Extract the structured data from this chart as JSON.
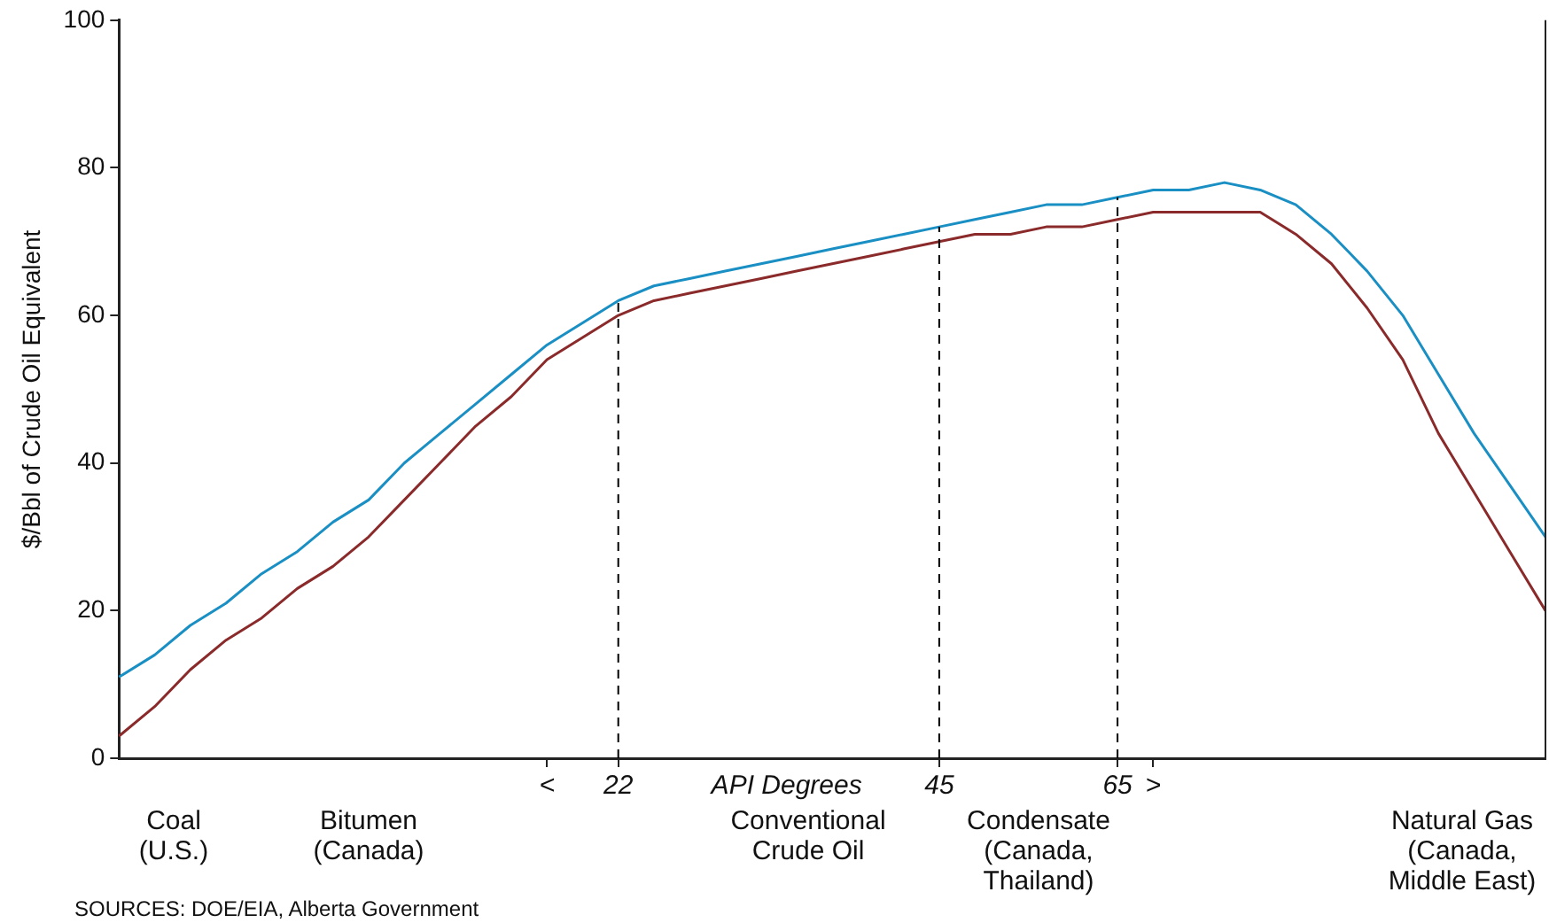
{
  "chart_data": {
    "type": "line",
    "ylabel": "$/Bbl of Crude Oil Equivalent",
    "xlabel": "API Degrees",
    "categories": [
      null,
      null,
      null,
      null,
      null,
      null,
      null,
      null,
      null,
      null,
      null,
      null,
      "<",
      null,
      "22",
      null,
      null,
      null,
      null,
      null,
      null,
      null,
      null,
      "45",
      null,
      null,
      null,
      null,
      "65",
      ">",
      null,
      null,
      null,
      null,
      null,
      null,
      null,
      null,
      null,
      null,
      null
    ],
    "series": [
      {
        "color": "#1a8fc4",
        "values": [
          11,
          14,
          18,
          21,
          25,
          28,
          32,
          35,
          40,
          44,
          48,
          52,
          56,
          59,
          62,
          64,
          65,
          66,
          67,
          68,
          69,
          70,
          71,
          72,
          73,
          74,
          75,
          75,
          76,
          77,
          77,
          78,
          77,
          75,
          71,
          66,
          60,
          52,
          44,
          37,
          30
        ]
      },
      {
        "color": "#8b2a2a",
        "values": [
          3,
          7,
          12,
          16,
          19,
          23,
          26,
          30,
          35,
          40,
          45,
          49,
          54,
          57,
          60,
          62,
          63,
          64,
          65,
          66,
          67,
          68,
          69,
          70,
          71,
          71,
          72,
          72,
          73,
          74,
          74,
          74,
          74,
          71,
          67,
          61,
          54,
          44,
          36,
          28,
          20
        ]
      }
    ],
    "ylim": [
      0,
      100
    ],
    "yticks": [
      0,
      20,
      40,
      60,
      80,
      100
    ],
    "grid": false,
    "legend": false,
    "marker": "none",
    "line_style": "solid",
    "ref_lines": [
      {
        "axis": "x",
        "value": "22",
        "line_style": "dashed",
        "color": "#000000"
      },
      {
        "axis": "x",
        "value": "45",
        "line_style": "dashed",
        "color": "#000000"
      },
      {
        "axis": "x",
        "value": "65",
        "line_style": "dashed",
        "color": "#000000"
      }
    ],
    "annotations": [
      "Coal (U.S.)",
      "Bitumen (Canada)",
      "Conventional Crude Oil",
      "Condensate (Canada, Thailand)",
      "Natural Gas (Canada, Middle East)",
      "SOURCES: DOE/EIA, Alberta Government"
    ]
  }
}
